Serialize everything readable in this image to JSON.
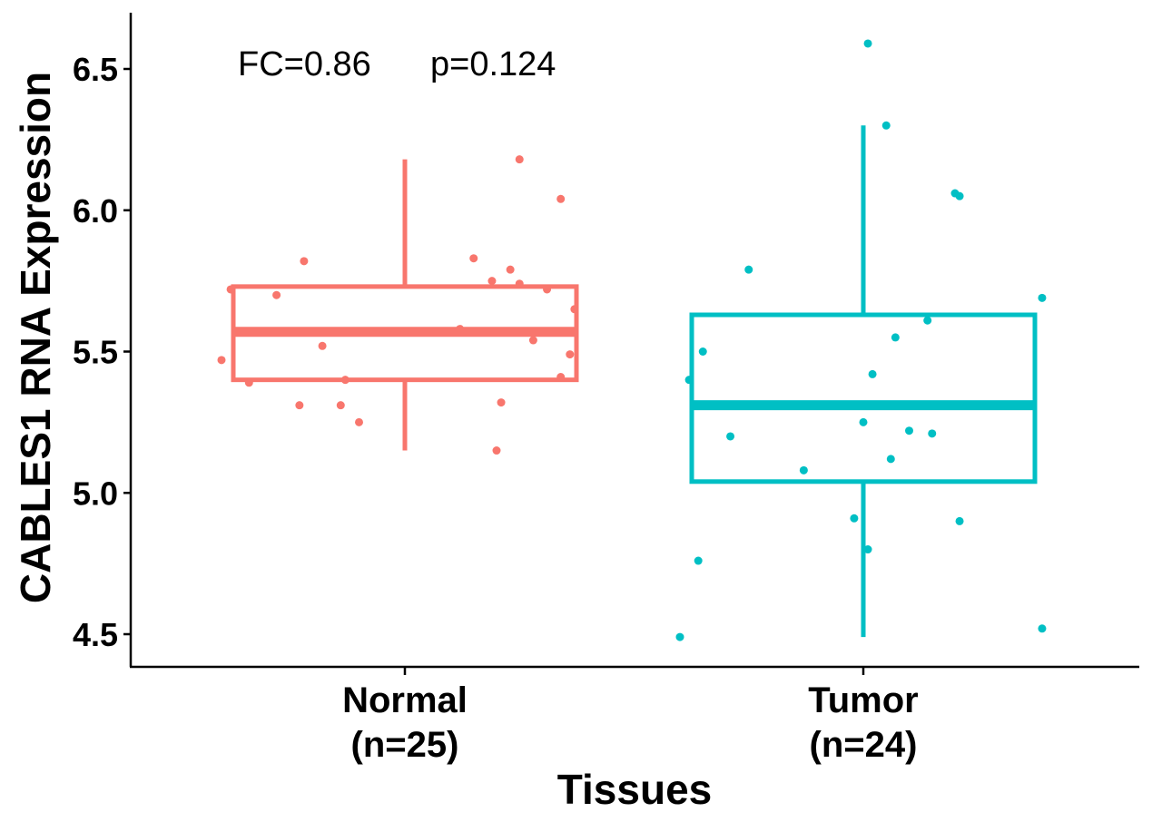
{
  "chart_data": {
    "type": "boxplot",
    "xlabel": "Tissues",
    "ylabel": "CABLES1 RNA Expression",
    "ylim": [
      4.4,
      6.7
    ],
    "yticks": [
      "4.5",
      "5.0",
      "5.5",
      "6.0",
      "6.5"
    ],
    "annotations": {
      "fc": "FC=0.86",
      "p": "p=0.124"
    },
    "groups": [
      {
        "name": "Normal",
        "n_label": "(n=25)",
        "color": "#F8766D",
        "box": {
          "whisker_low": 5.15,
          "q1": 5.4,
          "median": 5.57,
          "q3": 5.73,
          "whisker_high": 6.18
        },
        "points": [
          {
            "offset": -0.4,
            "y": 5.47
          },
          {
            "offset": -0.38,
            "y": 5.72
          },
          {
            "offset": -0.34,
            "y": 5.39
          },
          {
            "offset": -0.28,
            "y": 5.7
          },
          {
            "offset": -0.23,
            "y": 5.31
          },
          {
            "offset": -0.22,
            "y": 5.82
          },
          {
            "offset": -0.18,
            "y": 5.52
          },
          {
            "offset": -0.14,
            "y": 5.31
          },
          {
            "offset": -0.13,
            "y": 5.4
          },
          {
            "offset": -0.1,
            "y": 5.25
          },
          {
            "offset": 0.12,
            "y": 5.58
          },
          {
            "offset": 0.15,
            "y": 5.83
          },
          {
            "offset": 0.19,
            "y": 5.75
          },
          {
            "offset": 0.2,
            "y": 5.15
          },
          {
            "offset": 0.21,
            "y": 5.32
          },
          {
            "offset": 0.23,
            "y": 5.79
          },
          {
            "offset": 0.25,
            "y": 5.74
          },
          {
            "offset": 0.25,
            "y": 6.18
          },
          {
            "offset": 0.28,
            "y": 5.54
          },
          {
            "offset": 0.31,
            "y": 5.72
          },
          {
            "offset": 0.34,
            "y": 5.41
          },
          {
            "offset": 0.34,
            "y": 6.04
          },
          {
            "offset": 0.36,
            "y": 5.49
          },
          {
            "offset": 0.37,
            "y": 5.65
          },
          {
            "offset": 0.0,
            "y": 5.57
          }
        ]
      },
      {
        "name": "Tumor",
        "n_label": "(n=24)",
        "color": "#00BFC4",
        "box": {
          "whisker_low": 4.49,
          "q1": 5.04,
          "median": 5.31,
          "q3": 5.63,
          "whisker_high": 6.3
        },
        "points": [
          {
            "offset": -0.4,
            "y": 4.49
          },
          {
            "offset": -0.38,
            "y": 5.4
          },
          {
            "offset": -0.36,
            "y": 4.76
          },
          {
            "offset": -0.35,
            "y": 5.5
          },
          {
            "offset": -0.29,
            "y": 5.2
          },
          {
            "offset": -0.25,
            "y": 5.79
          },
          {
            "offset": -0.13,
            "y": 5.08
          },
          {
            "offset": -0.02,
            "y": 4.91
          },
          {
            "offset": 0.0,
            "y": 5.25
          },
          {
            "offset": 0.01,
            "y": 6.59
          },
          {
            "offset": 0.01,
            "y": 4.8
          },
          {
            "offset": 0.02,
            "y": 5.42
          },
          {
            "offset": 0.05,
            "y": 6.3
          },
          {
            "offset": 0.07,
            "y": 5.55
          },
          {
            "offset": 0.1,
            "y": 5.22
          },
          {
            "offset": 0.14,
            "y": 5.61
          },
          {
            "offset": 0.15,
            "y": 5.21
          },
          {
            "offset": 0.2,
            "y": 6.06
          },
          {
            "offset": 0.21,
            "y": 6.05
          },
          {
            "offset": 0.21,
            "y": 4.9
          },
          {
            "offset": 0.39,
            "y": 5.69
          },
          {
            "offset": 0.39,
            "y": 4.52
          },
          {
            "offset": -0.05,
            "y": 5.31
          },
          {
            "offset": 0.06,
            "y": 5.12
          }
        ]
      }
    ]
  }
}
